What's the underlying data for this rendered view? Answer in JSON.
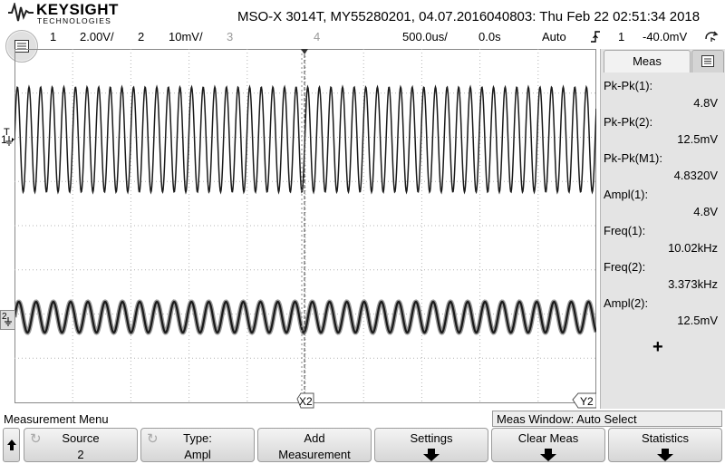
{
  "brand": {
    "name": "KEYSIGHT",
    "subtitle": "TECHNOLOGIES"
  },
  "title": "MSO-X 3014T, MY55280201, 04.07.2016040803: Thu Feb 22 02:51:34 2018",
  "status": {
    "ch1_num": "1",
    "ch1_scale": "2.00V/",
    "ch2_num": "2",
    "ch2_scale": "10mV/",
    "ch3_num": "3",
    "ch4_num": "4",
    "timebase": "500.0us/",
    "delay": "0.0s",
    "trigger_mode": "Auto",
    "trigger_source": "1",
    "trigger_level": "-40.0mV"
  },
  "markers": {
    "ch1": "1",
    "trig": "T",
    "ch2": "2",
    "x2": "X2",
    "y2": "Y2"
  },
  "meas_panel": {
    "tab_label": "Meas",
    "items": [
      {
        "label": "Pk-Pk(1):",
        "value": "4.8V"
      },
      {
        "label": "Pk-Pk(2):",
        "value": "12.5mV"
      },
      {
        "label": "Pk-Pk(M1):",
        "value": "4.8320V"
      },
      {
        "label": "Ampl(1):",
        "value": "4.8V"
      },
      {
        "label": "Freq(1):",
        "value": "10.02kHz"
      },
      {
        "label": "Freq(2):",
        "value": "3.373kHz"
      },
      {
        "label": "Ampl(2):",
        "value": "12.5mV"
      }
    ],
    "add_symbol": "+"
  },
  "bottom": {
    "menu_title": "Measurement Menu",
    "meas_window": "Meas Window: Auto Select",
    "softkeys": [
      {
        "label": "Source",
        "value": "2"
      },
      {
        "label": "Type:",
        "value": "Ampl"
      },
      {
        "label": "Add",
        "value": "Measurement"
      },
      {
        "label": "Settings",
        "value": ""
      },
      {
        "label": "Clear Meas",
        "value": ""
      },
      {
        "label": "Statistics",
        "value": ""
      }
    ]
  },
  "colors": {
    "trace": "#1a1a1a",
    "grid": "#b4b4b4",
    "panel": "#e4e4e4"
  }
}
